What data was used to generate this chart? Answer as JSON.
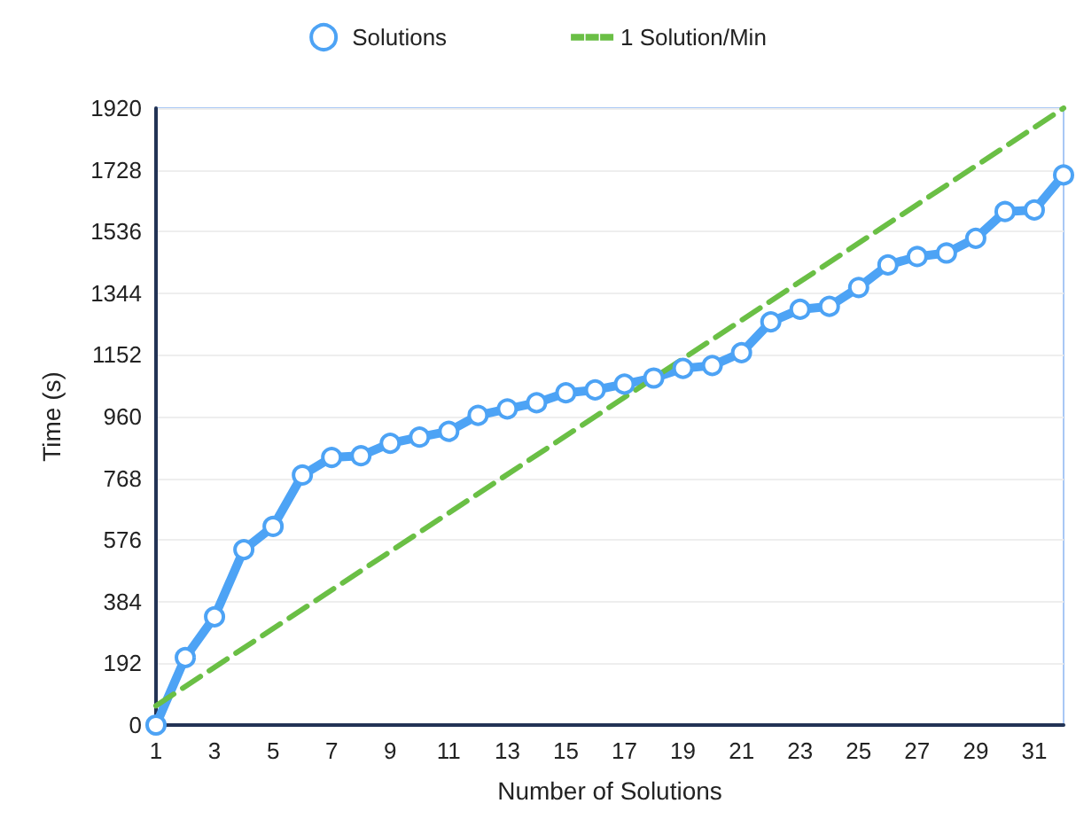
{
  "chart_data": {
    "type": "line",
    "xlabel": "Number of Solutions",
    "ylabel": "Time (s)",
    "xlim": [
      1,
      32
    ],
    "xticks": [
      1,
      3,
      5,
      7,
      9,
      11,
      13,
      15,
      17,
      19,
      21,
      23,
      25,
      27,
      29,
      31
    ],
    "ylim": [
      0,
      1920
    ],
    "yticks": [
      0,
      192,
      384,
      576,
      768,
      960,
      1152,
      1344,
      1536,
      1728,
      1920
    ],
    "grid": "y",
    "legend": "top",
    "series": [
      {
        "name": "Solutions",
        "color": "#4da3f5",
        "marker": "circle",
        "line_style": "solid",
        "x": [
          1,
          2,
          3,
          4,
          5,
          6,
          7,
          8,
          9,
          10,
          11,
          12,
          13,
          14,
          15,
          16,
          17,
          18,
          19,
          20,
          21,
          22,
          23,
          24,
          25,
          26,
          27,
          28,
          29,
          30,
          31,
          32
        ],
        "values": [
          0,
          210,
          337,
          546,
          618,
          778,
          833,
          838,
          877,
          896,
          914,
          964,
          984,
          1003,
          1034,
          1043,
          1061,
          1080,
          1110,
          1119,
          1159,
          1255,
          1294,
          1303,
          1362,
          1432,
          1458,
          1469,
          1515,
          1598,
          1603,
          1712
        ]
      },
      {
        "name": "1 Solution/Min",
        "color": "#6abf45",
        "marker": "none",
        "line_style": "dashed",
        "x": [
          1,
          32
        ],
        "values": [
          60,
          1920
        ]
      }
    ]
  }
}
